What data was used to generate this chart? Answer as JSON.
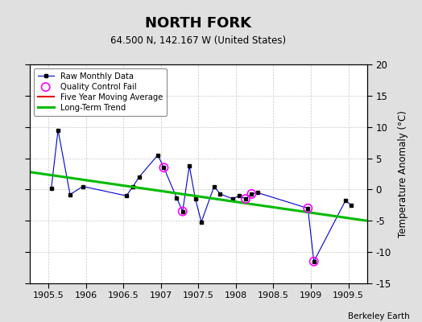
{
  "title": "NORTH FORK",
  "subtitle": "64.500 N, 142.167 W (United States)",
  "credit": "Berkeley Earth",
  "ylabel": "Temperature Anomaly (°C)",
  "xlim": [
    1905.25,
    1909.75
  ],
  "ylim": [
    -15,
    20
  ],
  "yticks": [
    -15,
    -10,
    -5,
    0,
    5,
    10,
    15,
    20
  ],
  "xticks": [
    1905.5,
    1906.0,
    1906.5,
    1907.0,
    1907.5,
    1908.0,
    1908.5,
    1909.0,
    1909.5
  ],
  "raw_x": [
    1905.54,
    1905.63,
    1905.79,
    1905.96,
    1906.54,
    1906.63,
    1906.71,
    1906.96,
    1907.04,
    1907.21,
    1907.29,
    1907.38,
    1907.46,
    1907.54,
    1907.71,
    1907.79,
    1907.96,
    1908.04,
    1908.13,
    1908.21,
    1908.29,
    1908.96,
    1909.04,
    1909.46,
    1909.54
  ],
  "raw_y": [
    0.2,
    9.5,
    -0.8,
    0.5,
    -1.0,
    0.5,
    2.0,
    5.5,
    3.5,
    -1.3,
    -3.5,
    3.8,
    -1.5,
    -5.2,
    0.5,
    -0.7,
    -1.5,
    -1.0,
    -1.5,
    -0.7,
    -0.5,
    -3.0,
    -11.5,
    -1.8,
    -2.5
  ],
  "qc_fail_x": [
    1907.04,
    1907.29,
    1908.13,
    1908.21,
    1908.96,
    1909.04
  ],
  "qc_fail_y": [
    3.5,
    -3.5,
    -1.5,
    -0.7,
    -3.0,
    -11.5
  ],
  "trend_x": [
    1905.25,
    1909.75
  ],
  "trend_y": [
    2.8,
    -5.0
  ],
  "raw_color": "#0000cc",
  "trend_color": "#00bb00",
  "mavg_color": "#dd0000",
  "qc_color": "#ff00ff",
  "bg_color": "#e0e0e0",
  "plot_bg_color": "#ffffff",
  "grid_color": "#c8c8c8"
}
